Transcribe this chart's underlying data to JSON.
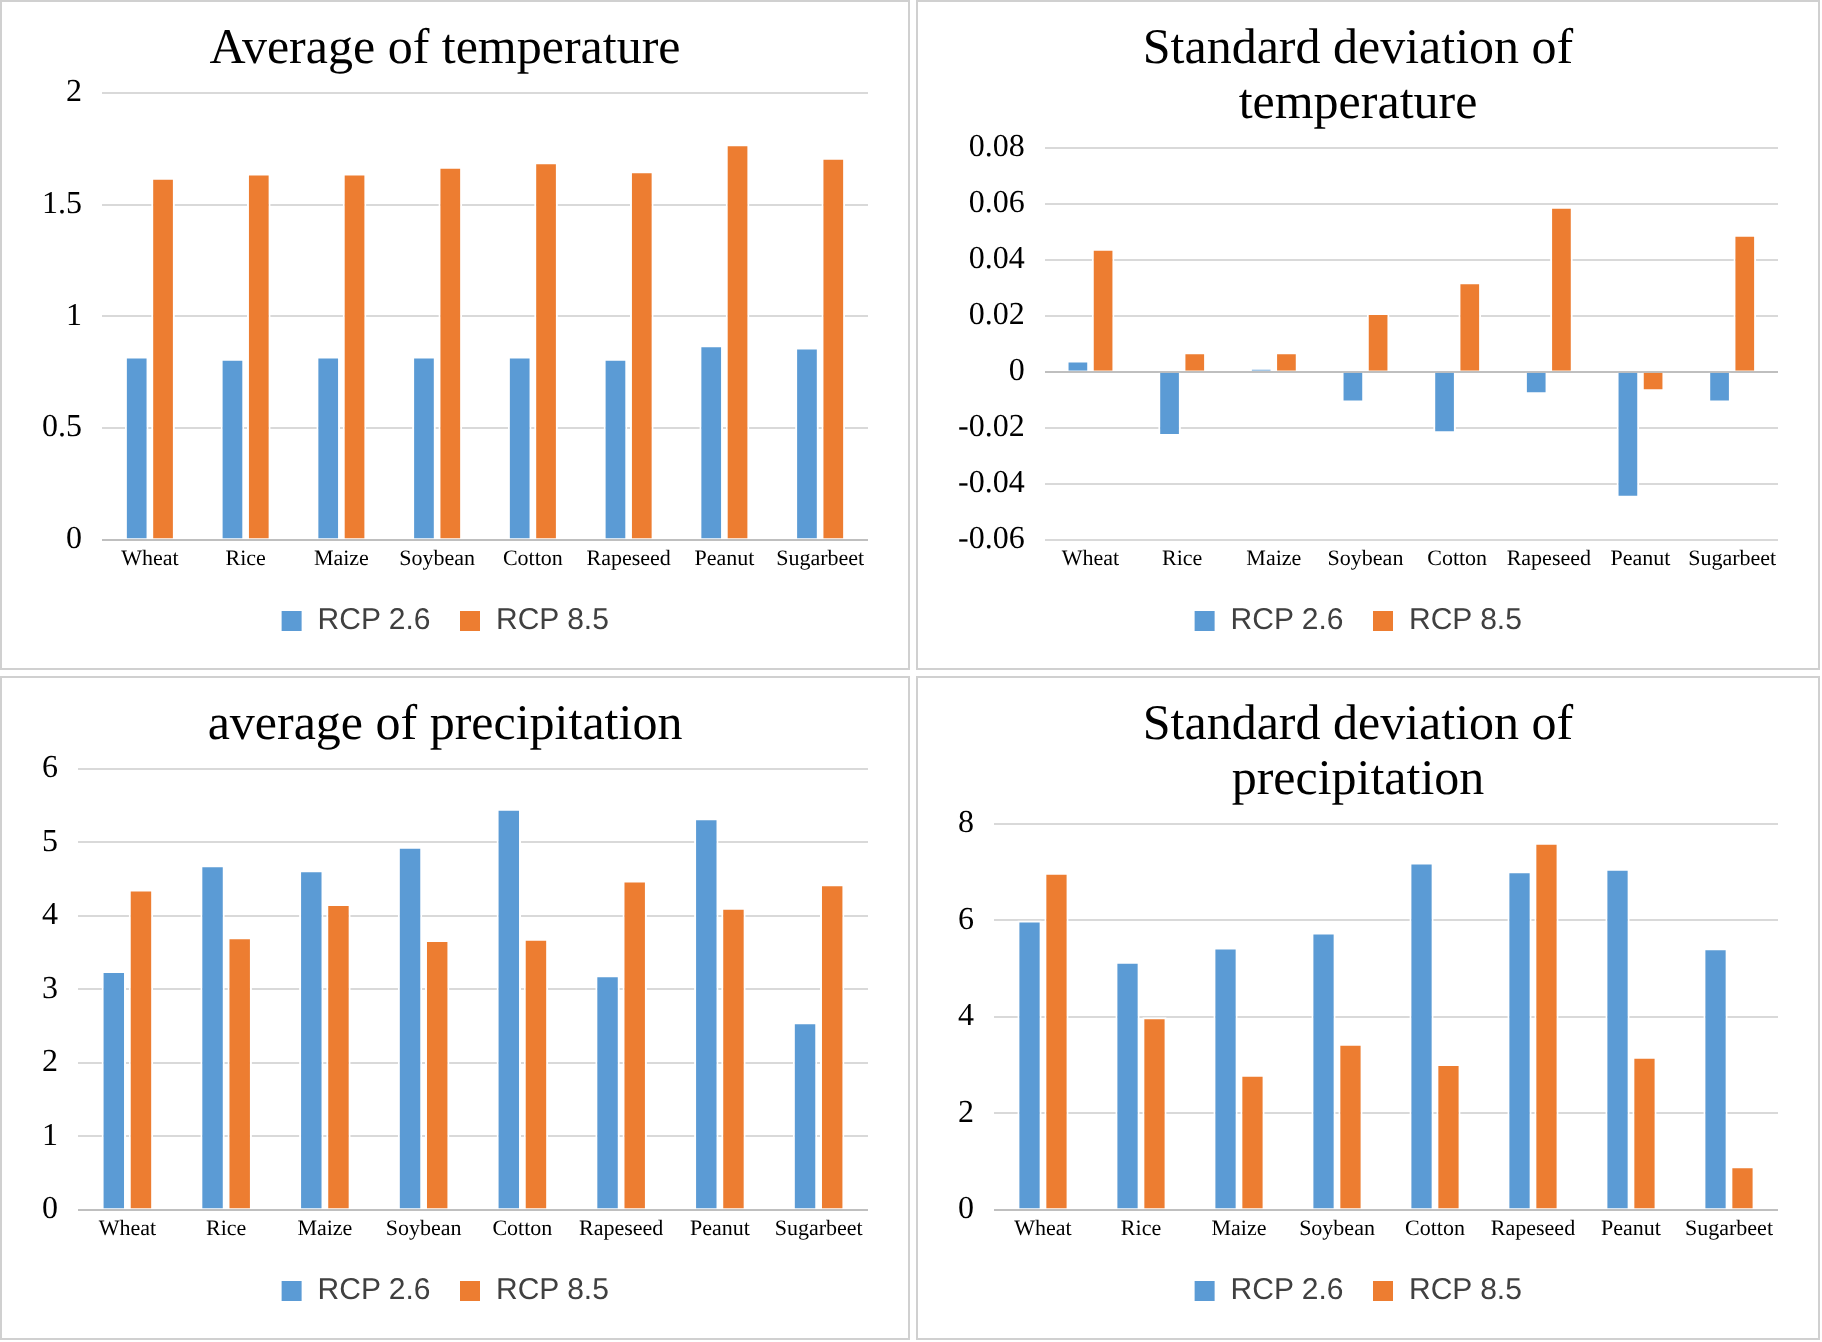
{
  "chart_data": [
    {
      "type": "bar",
      "title": "Average of temperature",
      "categories": [
        "Wheat",
        "Rice",
        "Maize",
        "Soybean",
        "Cotton",
        "Rapeseed",
        "Peanut",
        "Sugarbeet"
      ],
      "series": [
        {
          "name": "RCP 2.6",
          "color": "#5b9bd5",
          "values": [
            0.82,
            0.81,
            0.82,
            0.82,
            0.82,
            0.81,
            0.87,
            0.86
          ]
        },
        {
          "name": "RCP 8.5",
          "color": "#ed7d31",
          "values": [
            1.62,
            1.64,
            1.64,
            1.67,
            1.69,
            1.65,
            1.77,
            1.71
          ]
        }
      ],
      "ylim": [
        0,
        2
      ],
      "yticks": [
        0,
        {
          "value": 0.5,
          "label": "0.5"
        },
        1,
        {
          "value": 1.5,
          "label": "1.5"
        },
        2
      ],
      "grid": "y",
      "legend": "bottom"
    },
    {
      "type": "bar",
      "title": "Standard deviation of temperature",
      "categories": [
        "Wheat",
        "Rice",
        "Maize",
        "Soybean",
        "Cotton",
        "Rapeseed",
        "Peanut",
        "Sugarbeet"
      ],
      "series": [
        {
          "name": "RCP 2.6",
          "color": "#5b9bd5",
          "values": [
            0.004,
            -0.023,
            0.001,
            -0.011,
            -0.022,
            -0.008,
            -0.045,
            -0.011
          ]
        },
        {
          "name": "RCP 8.5",
          "color": "#ed7d31",
          "values": [
            0.044,
            0.007,
            0.007,
            0.021,
            0.032,
            0.059,
            -0.007,
            0.049
          ]
        }
      ],
      "ylim": [
        -0.06,
        0.08
      ],
      "yticks": [
        -0.06,
        -0.04,
        -0.02,
        0,
        {
          "value": 0.02,
          "label": "0.02"
        },
        {
          "value": 0.04,
          "label": "0.04"
        },
        {
          "value": 0.06,
          "label": "0.06"
        },
        {
          "value": 0.08,
          "label": "0.08"
        }
      ],
      "grid": "y",
      "legend": "bottom"
    },
    {
      "type": "bar",
      "title": "average of precipitation",
      "categories": [
        "Wheat",
        "Rice",
        "Maize",
        "Soybean",
        "Cotton",
        "Rapeseed",
        "Peanut",
        "Sugarbeet"
      ],
      "series": [
        {
          "name": "RCP 2.6",
          "color": "#5b9bd5",
          "values": [
            3.25,
            4.69,
            4.62,
            4.94,
            5.46,
            3.19,
            5.33,
            2.55
          ]
        },
        {
          "name": "RCP 8.5",
          "color": "#ed7d31",
          "values": [
            4.36,
            3.71,
            4.16,
            3.67,
            3.69,
            4.48,
            4.11,
            4.43
          ]
        }
      ],
      "ylim": [
        0,
        6
      ],
      "yticks": [
        0,
        1,
        2,
        3,
        4,
        5,
        6
      ],
      "grid": "y",
      "legend": "bottom"
    },
    {
      "type": "bar",
      "title": "Standard deviation of precipitation",
      "categories": [
        "Wheat",
        "Rice",
        "Maize",
        "Soybean",
        "Cotton",
        "Rapeseed",
        "Peanut",
        "Sugarbeet"
      ],
      "series": [
        {
          "name": "RCP 2.6",
          "color": "#5b9bd5",
          "values": [
            6.0,
            5.14,
            5.44,
            5.75,
            7.2,
            7.02,
            7.07,
            5.42
          ]
        },
        {
          "name": "RCP 8.5",
          "color": "#ed7d31",
          "values": [
            6.99,
            3.99,
            2.8,
            3.44,
            3.02,
            7.61,
            3.17,
            0.9
          ]
        }
      ],
      "ylim": [
        0,
        8
      ],
      "yticks": [
        0,
        2,
        4,
        6,
        8
      ],
      "grid": "y",
      "legend": "bottom"
    }
  ]
}
